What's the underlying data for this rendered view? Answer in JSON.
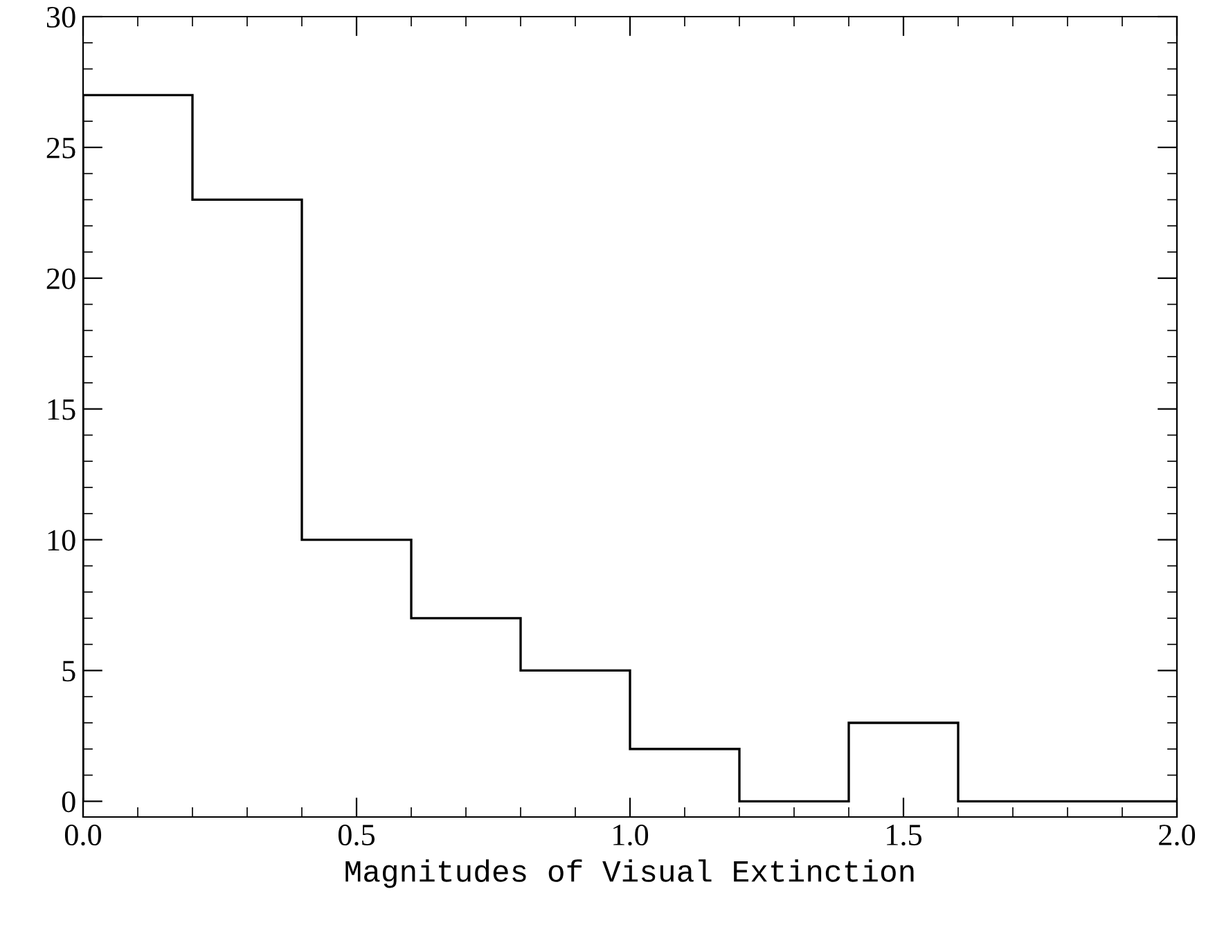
{
  "chart_data": {
    "type": "histogram",
    "xlabel": "Magnitudes of Visual Extinction",
    "bins": [
      0.0,
      0.2,
      0.4,
      0.6,
      0.8,
      1.0,
      1.2,
      1.4,
      1.6,
      1.8,
      2.0
    ],
    "values": [
      27,
      23,
      10,
      7,
      5,
      2,
      0,
      3,
      0,
      0
    ],
    "color": "#000000",
    "xlim": [
      0.0,
      2.0
    ],
    "xticks": [
      {
        "value": 0,
        "label": "0.0"
      },
      0.5,
      {
        "value": 1,
        "label": "1.0"
      },
      1.5,
      {
        "value": 2,
        "label": "2.0"
      }
    ],
    "ylim": [
      -0.6,
      30
    ],
    "yticks": [
      0,
      5,
      10,
      15,
      20,
      25,
      30
    ],
    "grid": false
  }
}
